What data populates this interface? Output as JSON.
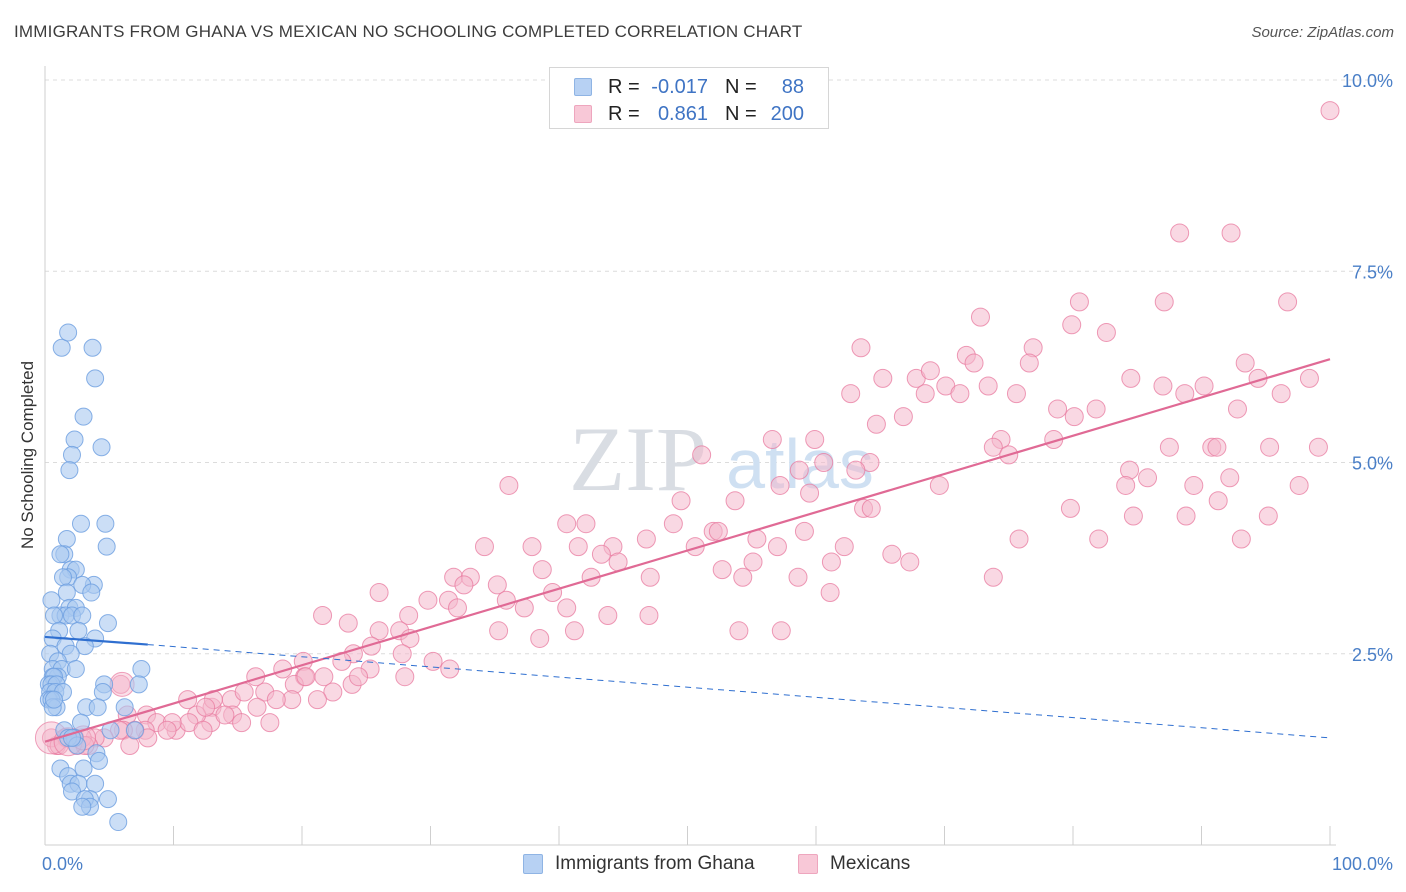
{
  "header": {
    "title": "IMMIGRANTS FROM GHANA VS MEXICAN NO SCHOOLING COMPLETED CORRELATION CHART",
    "source": "Source: ZipAtlas.com"
  },
  "watermark": {
    "text1": "ZIP",
    "text2": "atlas"
  },
  "colors": {
    "blue": "#6b9ee0",
    "blue_fill": "#a9c8f0",
    "pink": "#e8799f",
    "pink_fill": "#f4b8cc",
    "blue_line": "#2f6fd0",
    "pink_line": "#e06a95"
  },
  "legend": {
    "rows": [
      {
        "r_label": "R =",
        "r_value": "-0.017",
        "n_label": "N =",
        "n_value": "88"
      },
      {
        "r_label": "R =",
        "r_value": "0.861",
        "n_label": "N =",
        "n_value": "200"
      }
    ]
  },
  "bottom_legend": {
    "series1": "Immigrants from Ghana",
    "series2": "Mexicans"
  },
  "chart_data": {
    "type": "scatter",
    "title": "IMMIGRANTS FROM GHANA VS MEXICAN NO SCHOOLING COMPLETED CORRELATION CHART",
    "xlabel": "",
    "ylabel": "No Schooling Completed",
    "xlim": [
      0,
      100
    ],
    "ylim": [
      0,
      10
    ],
    "x_tick_labels": [
      "0.0%",
      "100.0%"
    ],
    "y_ticks": [
      2.5,
      5.0,
      7.5,
      10.0
    ],
    "y_tick_labels": [
      "2.5%",
      "5.0%",
      "7.5%",
      "10.0%"
    ],
    "grid": true,
    "legend_position": "top-center",
    "series": [
      {
        "name": "Immigrants from Ghana",
        "r": -0.017,
        "n": 88,
        "trend": {
          "solid": [
            [
              0,
              2.72
            ],
            [
              8,
              2.62
            ]
          ],
          "dashed": [
            [
              8,
              2.62
            ],
            [
              100,
              1.4
            ]
          ]
        },
        "points": [
          [
            1.3,
            6.5
          ],
          [
            1.8,
            6.7
          ],
          [
            3.7,
            6.5
          ],
          [
            3.9,
            6.1
          ],
          [
            3.0,
            5.6
          ],
          [
            2.3,
            5.3
          ],
          [
            4.4,
            5.2
          ],
          [
            2.1,
            5.1
          ],
          [
            1.9,
            4.9
          ],
          [
            2.8,
            4.2
          ],
          [
            4.7,
            4.2
          ],
          [
            1.7,
            4.0
          ],
          [
            4.8,
            3.9
          ],
          [
            1.5,
            3.8
          ],
          [
            1.2,
            3.8
          ],
          [
            2.0,
            3.6
          ],
          [
            2.4,
            3.6
          ],
          [
            1.8,
            3.5
          ],
          [
            1.4,
            3.5
          ],
          [
            3.8,
            3.4
          ],
          [
            2.9,
            3.4
          ],
          [
            1.7,
            3.3
          ],
          [
            3.6,
            3.3
          ],
          [
            0.5,
            3.2
          ],
          [
            1.9,
            3.1
          ],
          [
            2.4,
            3.1
          ],
          [
            1.2,
            3.0
          ],
          [
            1.6,
            3.0
          ],
          [
            2.1,
            3.0
          ],
          [
            2.9,
            3.0
          ],
          [
            0.7,
            3.0
          ],
          [
            4.9,
            2.9
          ],
          [
            2.6,
            2.8
          ],
          [
            1.1,
            2.8
          ],
          [
            3.9,
            2.7
          ],
          [
            0.6,
            2.7
          ],
          [
            3.1,
            2.6
          ],
          [
            1.6,
            2.6
          ],
          [
            0.4,
            2.5
          ],
          [
            2.0,
            2.5
          ],
          [
            1.0,
            2.4
          ],
          [
            0.6,
            2.3
          ],
          [
            1.3,
            2.3
          ],
          [
            2.4,
            2.3
          ],
          [
            7.5,
            2.3
          ],
          [
            1.0,
            2.2
          ],
          [
            0.6,
            2.2
          ],
          [
            0.7,
            2.2
          ],
          [
            0.3,
            2.1
          ],
          [
            0.5,
            2.1
          ],
          [
            0.9,
            2.1
          ],
          [
            4.6,
            2.1
          ],
          [
            7.3,
            2.1
          ],
          [
            0.4,
            2.0
          ],
          [
            0.8,
            2.0
          ],
          [
            1.4,
            2.0
          ],
          [
            4.5,
            2.0
          ],
          [
            0.3,
            1.9
          ],
          [
            0.5,
            1.9
          ],
          [
            0.9,
            1.8
          ],
          [
            3.2,
            1.8
          ],
          [
            4.1,
            1.8
          ],
          [
            6.2,
            1.8
          ],
          [
            0.6,
            1.8
          ],
          [
            0.7,
            1.9
          ],
          [
            2.8,
            1.6
          ],
          [
            5.1,
            1.5
          ],
          [
            7.0,
            1.5
          ],
          [
            1.5,
            1.5
          ],
          [
            2.3,
            1.4
          ],
          [
            1.8,
            1.4
          ],
          [
            2.5,
            1.3
          ],
          [
            2.1,
            1.4
          ],
          [
            4.0,
            1.2
          ],
          [
            4.2,
            1.1
          ],
          [
            1.2,
            1.0
          ],
          [
            3.0,
            1.0
          ],
          [
            1.8,
            0.9
          ],
          [
            2.0,
            0.8
          ],
          [
            2.6,
            0.8
          ],
          [
            3.9,
            0.8
          ],
          [
            2.1,
            0.7
          ],
          [
            3.5,
            0.6
          ],
          [
            4.9,
            0.6
          ],
          [
            3.1,
            0.6
          ],
          [
            3.5,
            0.5
          ],
          [
            2.9,
            0.5
          ],
          [
            5.7,
            0.3
          ]
        ]
      },
      {
        "name": "Mexicans",
        "r": 0.861,
        "n": 200,
        "trend": [
          [
            0,
            1.35
          ],
          [
            100,
            6.35
          ]
        ],
        "points": [
          [
            100,
            9.6
          ],
          [
            88.3,
            8.0
          ],
          [
            92.3,
            8.0
          ],
          [
            80.5,
            7.1
          ],
          [
            87.1,
            7.1
          ],
          [
            96.7,
            7.1
          ],
          [
            72.8,
            6.9
          ],
          [
            79.9,
            6.8
          ],
          [
            82.6,
            6.7
          ],
          [
            76.9,
            6.5
          ],
          [
            63.5,
            6.5
          ],
          [
            71.7,
            6.4
          ],
          [
            72.3,
            6.3
          ],
          [
            76.6,
            6.3
          ],
          [
            93.4,
            6.3
          ],
          [
            94.4,
            6.1
          ],
          [
            65.2,
            6.1
          ],
          [
            67.8,
            6.1
          ],
          [
            68.9,
            6.2
          ],
          [
            70.1,
            6.0
          ],
          [
            84.5,
            6.1
          ],
          [
            87.0,
            6.0
          ],
          [
            98.4,
            6.1
          ],
          [
            62.7,
            5.9
          ],
          [
            68.5,
            5.9
          ],
          [
            71.2,
            5.9
          ],
          [
            73.4,
            6.0
          ],
          [
            75.6,
            5.9
          ],
          [
            88.7,
            5.9
          ],
          [
            90.2,
            6.0
          ],
          [
            96.2,
            5.9
          ],
          [
            78.8,
            5.7
          ],
          [
            80.1,
            5.6
          ],
          [
            81.8,
            5.7
          ],
          [
            92.8,
            5.7
          ],
          [
            66.8,
            5.6
          ],
          [
            64.7,
            5.5
          ],
          [
            56.6,
            5.3
          ],
          [
            59.9,
            5.3
          ],
          [
            74.4,
            5.3
          ],
          [
            78.5,
            5.3
          ],
          [
            73.8,
            5.2
          ],
          [
            87.5,
            5.2
          ],
          [
            90.8,
            5.2
          ],
          [
            91.2,
            5.2
          ],
          [
            95.3,
            5.2
          ],
          [
            99.1,
            5.2
          ],
          [
            51.1,
            5.1
          ],
          [
            60.6,
            5.0
          ],
          [
            64.2,
            5.0
          ],
          [
            75.0,
            5.1
          ],
          [
            58.7,
            4.9
          ],
          [
            63.1,
            4.9
          ],
          [
            84.4,
            4.9
          ],
          [
            85.8,
            4.8
          ],
          [
            92.2,
            4.8
          ],
          [
            97.6,
            4.7
          ],
          [
            89.4,
            4.7
          ],
          [
            36.1,
            4.7
          ],
          [
            57.2,
            4.7
          ],
          [
            69.6,
            4.7
          ],
          [
            84.1,
            4.7
          ],
          [
            59.5,
            4.6
          ],
          [
            49.5,
            4.5
          ],
          [
            53.7,
            4.5
          ],
          [
            91.3,
            4.5
          ],
          [
            63.7,
            4.4
          ],
          [
            64.3,
            4.4
          ],
          [
            79.8,
            4.4
          ],
          [
            84.7,
            4.3
          ],
          [
            95.2,
            4.3
          ],
          [
            88.8,
            4.3
          ],
          [
            40.6,
            4.2
          ],
          [
            42.1,
            4.2
          ],
          [
            48.9,
            4.2
          ],
          [
            52.0,
            4.1
          ],
          [
            52.4,
            4.1
          ],
          [
            59.1,
            4.1
          ],
          [
            75.8,
            4.0
          ],
          [
            46.8,
            4.0
          ],
          [
            44.2,
            3.9
          ],
          [
            50.6,
            3.9
          ],
          [
            55.4,
            4.0
          ],
          [
            57.0,
            3.9
          ],
          [
            82.0,
            4.0
          ],
          [
            93.1,
            4.0
          ],
          [
            62.2,
            3.9
          ],
          [
            43.3,
            3.8
          ],
          [
            44.6,
            3.7
          ],
          [
            52.7,
            3.6
          ],
          [
            55.1,
            3.7
          ],
          [
            61.2,
            3.7
          ],
          [
            67.3,
            3.7
          ],
          [
            34.2,
            3.9
          ],
          [
            37.9,
            3.9
          ],
          [
            41.5,
            3.9
          ],
          [
            38.7,
            3.6
          ],
          [
            31.8,
            3.5
          ],
          [
            33.1,
            3.5
          ],
          [
            42.5,
            3.5
          ],
          [
            47.1,
            3.5
          ],
          [
            54.3,
            3.5
          ],
          [
            58.6,
            3.5
          ],
          [
            65.9,
            3.8
          ],
          [
            73.8,
            3.5
          ],
          [
            32.6,
            3.4
          ],
          [
            35.2,
            3.4
          ],
          [
            26.0,
            3.3
          ],
          [
            29.8,
            3.2
          ],
          [
            31.4,
            3.2
          ],
          [
            35.9,
            3.2
          ],
          [
            37.3,
            3.1
          ],
          [
            39.5,
            3.3
          ],
          [
            40.6,
            3.1
          ],
          [
            43.8,
            3.0
          ],
          [
            47.0,
            3.0
          ],
          [
            21.6,
            3.0
          ],
          [
            28.3,
            3.0
          ],
          [
            32.1,
            3.1
          ],
          [
            35.3,
            2.8
          ],
          [
            38.5,
            2.7
          ],
          [
            41.2,
            2.8
          ],
          [
            54.0,
            2.8
          ],
          [
            57.3,
            2.8
          ],
          [
            61.1,
            3.3
          ],
          [
            23.6,
            2.9
          ],
          [
            26.0,
            2.8
          ],
          [
            27.6,
            2.8
          ],
          [
            28.4,
            2.7
          ],
          [
            25.4,
            2.6
          ],
          [
            24.0,
            2.5
          ],
          [
            20.1,
            2.4
          ],
          [
            20.2,
            2.2
          ],
          [
            23.1,
            2.4
          ],
          [
            27.8,
            2.5
          ],
          [
            30.2,
            2.4
          ],
          [
            31.5,
            2.3
          ],
          [
            18.5,
            2.3
          ],
          [
            21.7,
            2.2
          ],
          [
            19.4,
            2.1
          ],
          [
            22.4,
            2.0
          ],
          [
            17.1,
            2.0
          ],
          [
            16.4,
            2.2
          ],
          [
            11.1,
            1.9
          ],
          [
            13.0,
            1.8
          ],
          [
            14.5,
            1.9
          ],
          [
            16.5,
            1.8
          ],
          [
            19.2,
            1.9
          ],
          [
            12.9,
            1.6
          ],
          [
            13.1,
            1.9
          ],
          [
            7.9,
            1.7
          ],
          [
            8.7,
            1.6
          ],
          [
            10.2,
            1.5
          ],
          [
            11.8,
            1.7
          ],
          [
            11.2,
            1.6
          ],
          [
            9.9,
            1.6
          ],
          [
            12.5,
            1.8
          ],
          [
            6.4,
            1.7
          ],
          [
            7.8,
            1.5
          ],
          [
            7.0,
            1.5
          ],
          [
            6.1,
            1.5
          ],
          [
            5.8,
            1.5
          ],
          [
            4.6,
            1.4
          ],
          [
            3.9,
            1.4
          ],
          [
            3.4,
            1.3
          ],
          [
            2.9,
            1.4
          ],
          [
            2.3,
            1.4
          ],
          [
            1.6,
            1.4
          ],
          [
            0.9,
            1.3
          ],
          [
            0.5,
            1.4
          ],
          [
            1.1,
            1.3
          ],
          [
            1.7,
            1.4
          ],
          [
            2.5,
            1.3
          ],
          [
            3.1,
            1.3
          ],
          [
            6.6,
            1.3
          ],
          [
            8.0,
            1.4
          ],
          [
            9.5,
            1.5
          ],
          [
            14.6,
            1.7
          ],
          [
            15.3,
            1.6
          ],
          [
            14.0,
            1.7
          ],
          [
            17.5,
            1.6
          ],
          [
            18.0,
            1.9
          ],
          [
            23.9,
            2.1
          ],
          [
            25.3,
            2.3
          ],
          [
            28.0,
            2.2
          ],
          [
            15.5,
            2.0
          ],
          [
            20.3,
            2.2
          ],
          [
            5.9,
            2.1
          ],
          [
            12.3,
            1.5
          ],
          [
            21.2,
            1.9
          ],
          [
            24.4,
            2.2
          ]
        ]
      }
    ]
  }
}
